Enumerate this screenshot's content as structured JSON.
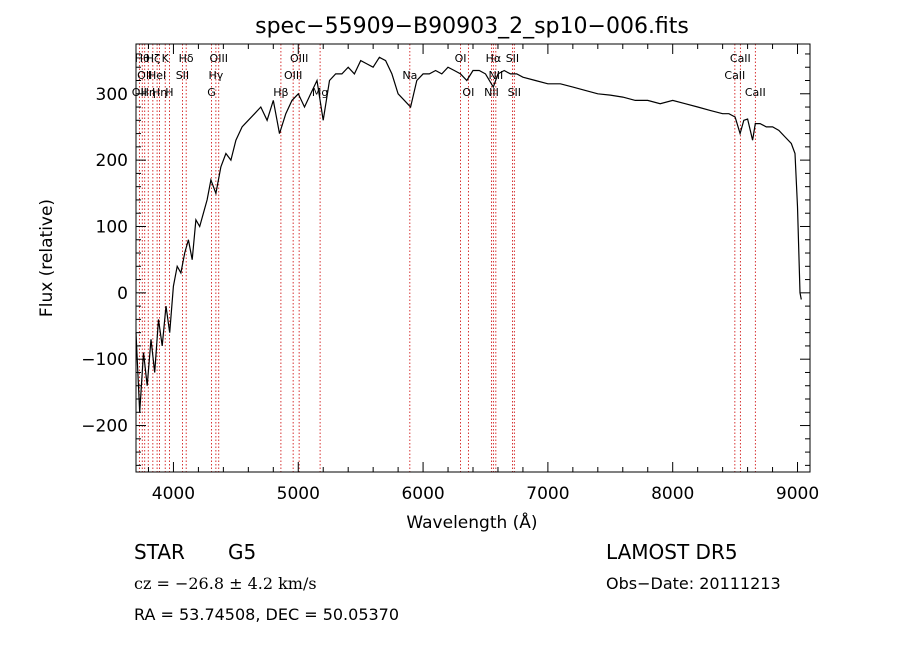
{
  "chart_data": {
    "type": "line",
    "title": "spec−55909−B90903_2_sp10−006.fits",
    "xlabel": "Wavelength (Å)",
    "ylabel": "Flux (relative)",
    "xlim": [
      3700,
      9100
    ],
    "ylim": [
      -270,
      375
    ],
    "xticks": [
      4000,
      5000,
      6000,
      7000,
      8000,
      9000
    ],
    "xtick_labels": [
      "4000",
      "5000",
      "6000",
      "7000",
      "8000",
      "9000"
    ],
    "yticks": [
      -200,
      -100,
      0,
      100,
      200,
      300
    ],
    "ytick_labels": [
      "−200",
      "−100",
      "0",
      "100",
      "200",
      "300"
    ],
    "grid": false,
    "line_color": "#000000",
    "marker_color": "#cc0000",
    "series": [
      {
        "x": [
          3700,
          3730,
          3760,
          3790,
          3820,
          3850,
          3880,
          3910,
          3940,
          3970,
          4000,
          4030,
          4060,
          4090,
          4120,
          4150,
          4180,
          4210,
          4240,
          4270,
          4300,
          4340,
          4380,
          4420,
          4460,
          4500,
          4550,
          4600,
          4650,
          4700,
          4750,
          4800,
          4850,
          4900,
          4950,
          5000,
          5050,
          5100,
          5150,
          5200,
          5250,
          5300,
          5350,
          5400,
          5450,
          5500,
          5550,
          5600,
          5650,
          5700,
          5750,
          5800,
          5850,
          5900,
          5950,
          6000,
          6050,
          6100,
          6150,
          6200,
          6250,
          6300,
          6350,
          6400,
          6450,
          6500,
          6563,
          6600,
          6650,
          6700,
          6750,
          6800,
          6900,
          7000,
          7100,
          7200,
          7300,
          7400,
          7500,
          7600,
          7700,
          7800,
          7900,
          8000,
          8100,
          8200,
          8300,
          8400,
          8450,
          8500,
          8540,
          8570,
          8600,
          8640,
          8662,
          8700,
          8750,
          8800,
          8850,
          8900,
          8950,
          8980,
          9000,
          9020,
          9030
        ],
        "y": [
          -60,
          -180,
          -90,
          -140,
          -70,
          -120,
          -40,
          -80,
          -20,
          -60,
          10,
          40,
          30,
          60,
          80,
          50,
          110,
          100,
          120,
          140,
          170,
          150,
          190,
          210,
          200,
          230,
          250,
          260,
          270,
          280,
          260,
          290,
          240,
          270,
          290,
          300,
          280,
          300,
          320,
          260,
          320,
          330,
          330,
          340,
          330,
          350,
          345,
          340,
          355,
          350,
          330,
          300,
          290,
          280,
          320,
          330,
          330,
          335,
          330,
          340,
          335,
          330,
          320,
          335,
          335,
          330,
          310,
          330,
          335,
          330,
          330,
          325,
          320,
          315,
          315,
          310,
          305,
          300,
          298,
          295,
          290,
          290,
          285,
          290,
          285,
          280,
          275,
          270,
          270,
          265,
          240,
          260,
          262,
          230,
          255,
          255,
          250,
          250,
          245,
          235,
          225,
          210,
          130,
          0,
          -10
        ]
      }
    ],
    "line_markers": [
      {
        "x": 3727,
        "label": "OII",
        "row": 3
      },
      {
        "x": 3750,
        "label": "Hθ",
        "row": 1
      },
      {
        "x": 3770,
        "label": "OII",
        "row": 2
      },
      {
        "x": 3798,
        "label": "Hη",
        "row": 3
      },
      {
        "x": 3835,
        "label": "Hζ",
        "row": 1
      },
      {
        "x": 3869,
        "label": "HeI",
        "row": 2
      },
      {
        "x": 3889,
        "label": "Hη",
        "row": 3
      },
      {
        "x": 3934,
        "label": "K",
        "row": 1
      },
      {
        "x": 3968,
        "label": "H",
        "row": 3
      },
      {
        "x": 4072,
        "label": "SII",
        "row": 2
      },
      {
        "x": 4102,
        "label": "Hδ",
        "row": 1
      },
      {
        "x": 4305,
        "label": "G",
        "row": 3
      },
      {
        "x": 4340,
        "label": "Hγ",
        "row": 2
      },
      {
        "x": 4363,
        "label": "OIII",
        "row": 1
      },
      {
        "x": 4861,
        "label": "Hβ",
        "row": 3
      },
      {
        "x": 4959,
        "label": "OIII",
        "row": 2
      },
      {
        "x": 5007,
        "label": "OIII",
        "row": 1
      },
      {
        "x": 5175,
        "label": "Mg",
        "row": 3
      },
      {
        "x": 5894,
        "label": "Na",
        "row": 2
      },
      {
        "x": 6300,
        "label": "OI",
        "row": 1
      },
      {
        "x": 6363,
        "label": "OI",
        "row": 3
      },
      {
        "x": 6548,
        "label": "NII",
        "row": 3
      },
      {
        "x": 6563,
        "label": "Hα",
        "row": 1
      },
      {
        "x": 6583,
        "label": "NII",
        "row": 2
      },
      {
        "x": 6716,
        "label": "SII",
        "row": 1
      },
      {
        "x": 6731,
        "label": "SII",
        "row": 3
      },
      {
        "x": 8498,
        "label": "CaII",
        "row": 2
      },
      {
        "x": 8542,
        "label": "CaII",
        "row": 1
      },
      {
        "x": 8662,
        "label": "CaII",
        "row": 3
      }
    ]
  },
  "info": {
    "class": "STAR",
    "subclass": "G5",
    "survey": "LAMOST  DR5",
    "cz": "cz = −26.8 ± 4.2 km/s",
    "obs_date": "Obs−Date: 20111213",
    "radec": "RA =  53.74508, DEC =  50.05370"
  }
}
